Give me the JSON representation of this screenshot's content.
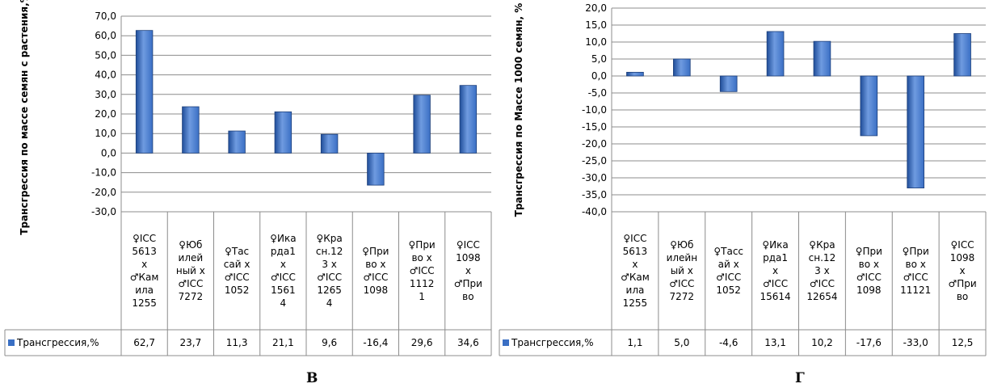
{
  "chart_data": [
    {
      "type": "bar",
      "panel_label": "В",
      "ylabel": "Трансгрессия по массе семян с растения,%",
      "ylim": [
        -30,
        70
      ],
      "ytick_step": 10,
      "ytick_labels": [
        "70,0",
        "60,0",
        "50,0",
        "40,0",
        "30,0",
        "20,0",
        "10,0",
        "0,0",
        "-10,0",
        "-20,0",
        "-30,0"
      ],
      "grid": true,
      "categories": [
        [
          "♀ICC",
          "5613",
          "x",
          "♂Кам",
          "ила",
          "1255"
        ],
        [
          "♀Юб",
          "илей",
          "ный х",
          "♂ICC",
          "7272"
        ],
        [
          "♀Тас",
          "сай х",
          "♂ICC",
          "1052"
        ],
        [
          "♀Ика",
          "рда1",
          "х",
          "♂ICC",
          "1561",
          "4"
        ],
        [
          "♀Кра",
          "сн.12",
          "3 х",
          "♂ICC",
          "1265",
          "4"
        ],
        [
          "♀При",
          "во х",
          "♂ICC",
          "1098"
        ],
        [
          "♀При",
          "во х",
          "♂ICC",
          "1112",
          "1"
        ],
        [
          "♀ICC",
          "1098",
          "х",
          "♂При",
          "во"
        ]
      ],
      "series": [
        {
          "name": "Трансгрессия,%",
          "values": [
            62.7,
            23.7,
            11.3,
            21.1,
            9.6,
            -16.4,
            29.6,
            34.6
          ],
          "value_labels": [
            "62,7",
            "23,7",
            "11,3",
            "21,1",
            "9,6",
            "-16,4",
            "29,6",
            "34,6"
          ]
        }
      ],
      "colors": {
        "bar": "#3a6fc4",
        "bar_light": "#6f9be0",
        "bar_dark": "#1f4d99",
        "grid": "#8c8c8c"
      }
    },
    {
      "type": "bar",
      "panel_label": "Г",
      "ylabel": "Трансгрессия по Массе 1000 семян, %",
      "ylim": [
        -40,
        20
      ],
      "ytick_step": 5,
      "ytick_labels": [
        "20,0",
        "15,0",
        "10,0",
        "5,0",
        "0,0",
        "-5,0",
        "-10,0",
        "-15,0",
        "-20,0",
        "-25,0",
        "-30,0",
        "-35,0",
        "-40,0"
      ],
      "grid": true,
      "categories": [
        [
          "♀ICC",
          "5613",
          "x",
          "♂Кам",
          "ила",
          "1255"
        ],
        [
          "♀Юб",
          "илейн",
          "ый х",
          "♂ICC",
          "7272"
        ],
        [
          "♀Тасс",
          "ай х",
          "♂ICC",
          "1052"
        ],
        [
          "♀Ика",
          "рда1",
          "х",
          "♂ICC",
          "15614"
        ],
        [
          "♀Кра",
          "сн.12",
          "3 х",
          "♂ICC",
          "12654"
        ],
        [
          "♀При",
          "во х",
          "♂ICC",
          "1098"
        ],
        [
          "♀При",
          "во х",
          "♂ICC",
          "11121"
        ],
        [
          "♀ICC",
          "1098",
          "х",
          "♂При",
          "во"
        ]
      ],
      "series": [
        {
          "name": "Трансгрессия,%",
          "values": [
            1.1,
            5.0,
            -4.6,
            13.1,
            10.2,
            -17.6,
            -33.0,
            12.5
          ],
          "value_labels": [
            "1,1",
            "5,0",
            "-4,6",
            "13,1",
            "10,2",
            "-17,6",
            "-33,0",
            "12,5"
          ]
        }
      ],
      "colors": {
        "bar": "#3a6fc4",
        "bar_light": "#6f9be0",
        "bar_dark": "#1f4d99",
        "grid": "#8c8c8c"
      }
    }
  ]
}
